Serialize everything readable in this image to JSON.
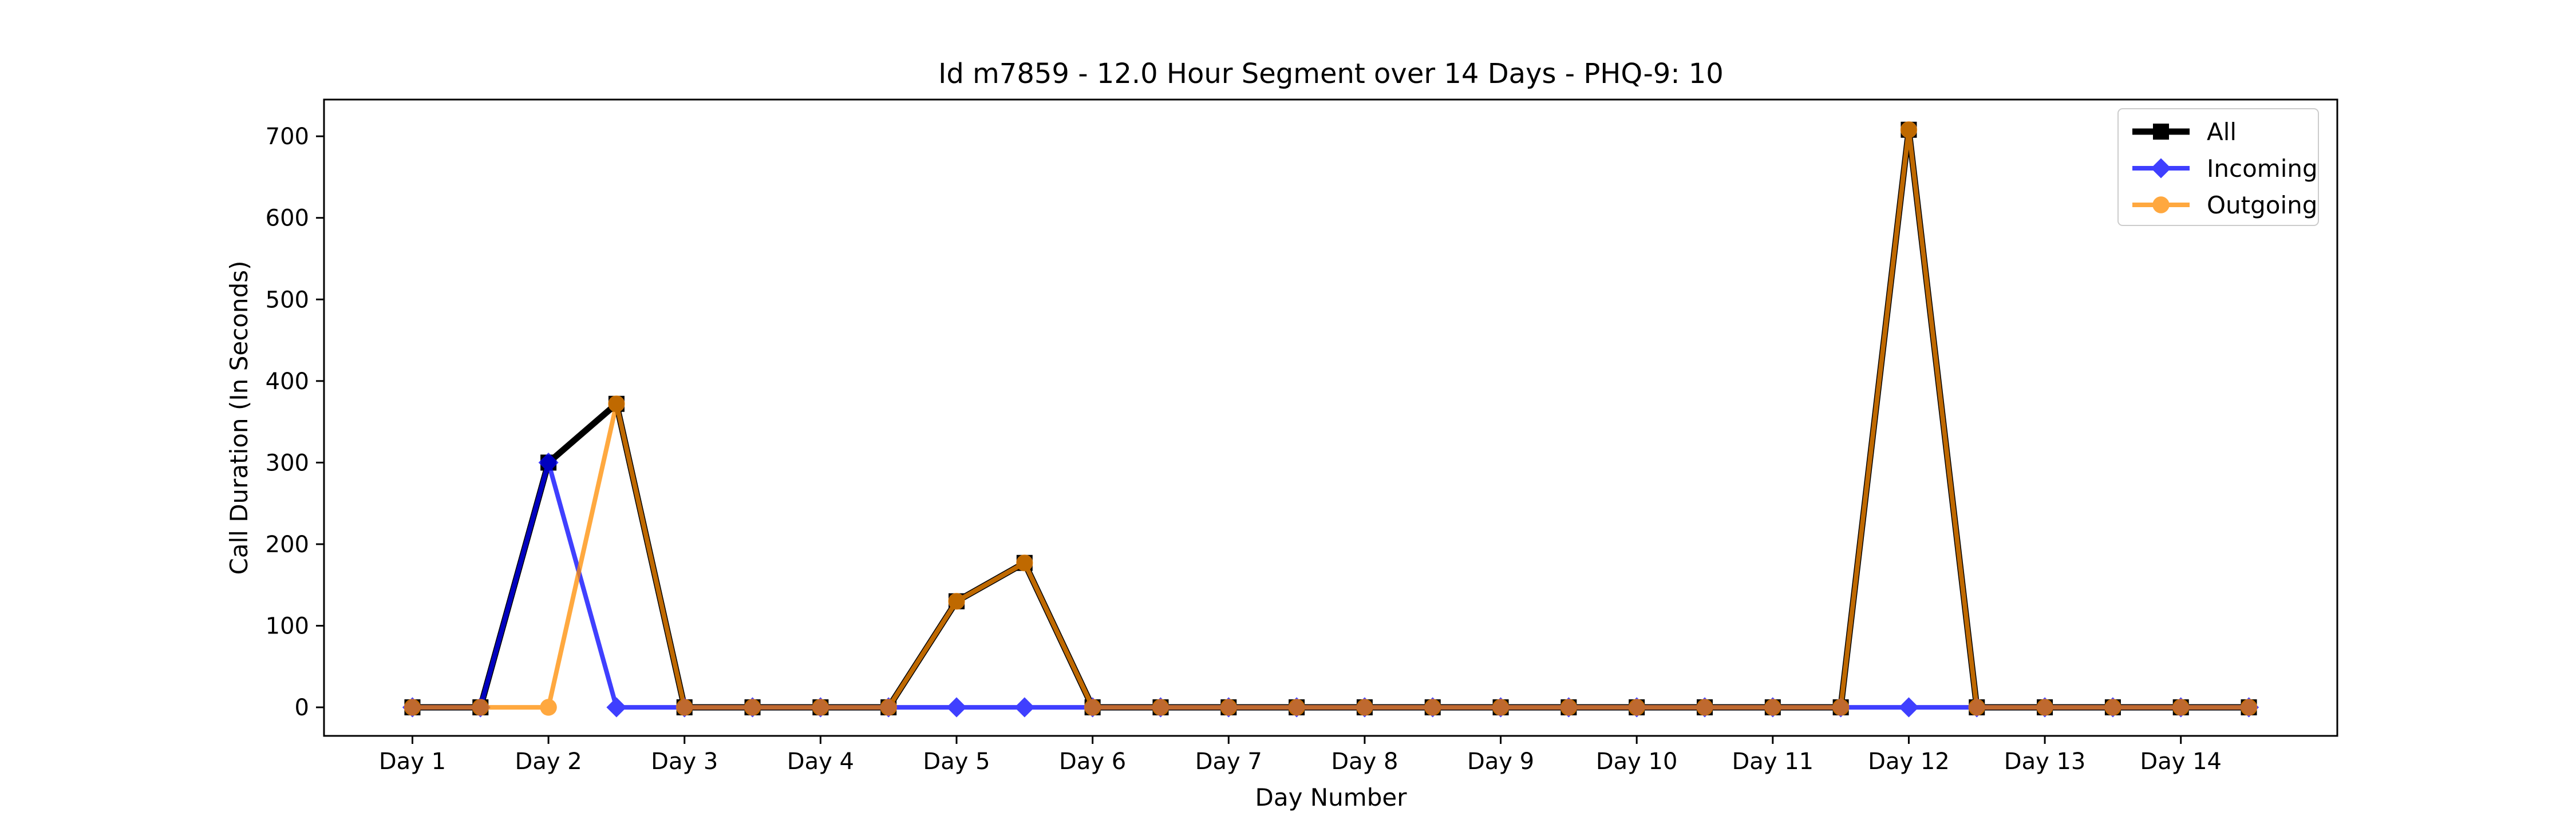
{
  "chart_data": {
    "type": "line",
    "title": "Id m7859 - 12.0 Hour Segment over 14 Days - PHQ-9: 10",
    "xlabel": "Day Number",
    "ylabel": "Call Duration (In Seconds)",
    "x": [
      0,
      1,
      2,
      3,
      4,
      5,
      6,
      7,
      8,
      9,
      10,
      11,
      12,
      13,
      14,
      15,
      16,
      17,
      18,
      19,
      20,
      21,
      22,
      23,
      24,
      25,
      26,
      27
    ],
    "xlim": [
      -1.3,
      28.3
    ],
    "xticks": [
      0,
      2,
      4,
      6,
      8,
      10,
      12,
      14,
      16,
      18,
      20,
      22,
      24,
      26
    ],
    "xticklabels": [
      "Day 1",
      "Day 2",
      "Day 3",
      "Day 4",
      "Day 5",
      "Day 6",
      "Day 7",
      "Day 8",
      "Day 9",
      "Day 10",
      "Day 11",
      "Day 12",
      "Day 13",
      "Day 14"
    ],
    "ylim": [
      -35,
      745
    ],
    "yticks": [
      0,
      100,
      200,
      300,
      400,
      500,
      600,
      700
    ],
    "grid": false,
    "legend_position": "top-right",
    "series": [
      {
        "name": "All",
        "color": "#000000",
        "marker": "square",
        "values": [
          0,
          0,
          300,
          372,
          0,
          0,
          0,
          0,
          130,
          177,
          0,
          0,
          0,
          0,
          0,
          0,
          0,
          0,
          0,
          0,
          0,
          0,
          708,
          0,
          0,
          0,
          0,
          0
        ]
      },
      {
        "name": "Incoming",
        "color": "#0000ff",
        "marker": "diamond",
        "values": [
          0,
          0,
          300,
          0,
          0,
          0,
          0,
          0,
          0,
          0,
          0,
          0,
          0,
          0,
          0,
          0,
          0,
          0,
          0,
          0,
          0,
          0,
          0,
          0,
          0,
          0,
          0,
          0
        ]
      },
      {
        "name": "Outgoing",
        "color": "#ff8c00",
        "marker": "circle",
        "values": [
          0,
          0,
          0,
          372,
          0,
          0,
          0,
          0,
          130,
          177,
          0,
          0,
          0,
          0,
          0,
          0,
          0,
          0,
          0,
          0,
          0,
          0,
          708,
          0,
          0,
          0,
          0,
          0
        ]
      }
    ]
  }
}
